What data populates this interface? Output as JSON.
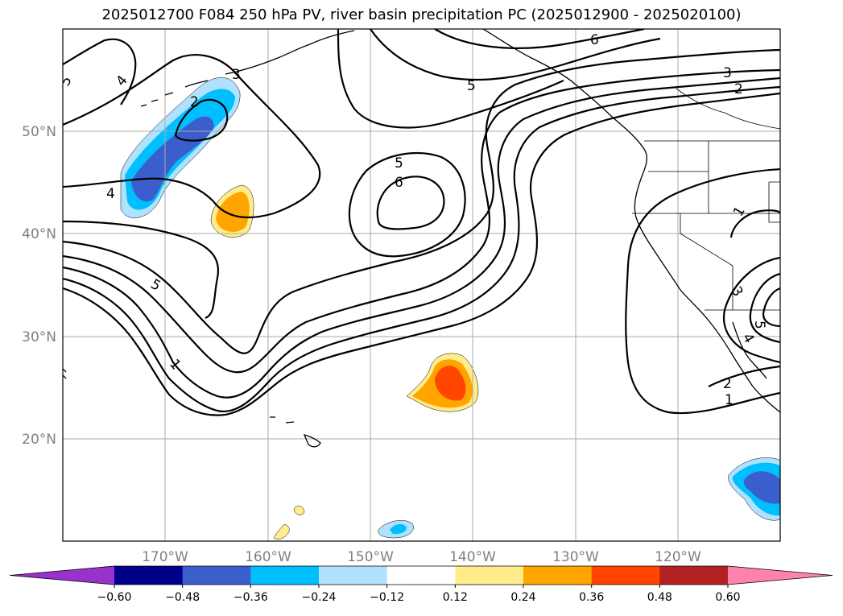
{
  "title": "2025012700 F084 250 hPa PV, river basin precipitation PC (2025012900 - 2025020100)",
  "lat_labels": [
    "50°N",
    "40°N",
    "30°N",
    "20°N"
  ],
  "lon_labels": [
    "170°W",
    "160°W",
    "150°W",
    "140°W",
    "130°W",
    "120°W"
  ],
  "contour_levels": [
    "1",
    "2",
    "3",
    "4",
    "5",
    "6"
  ],
  "contour_labels": [
    {
      "text": "5"
    },
    {
      "text": "4"
    },
    {
      "text": "2"
    },
    {
      "text": "3"
    },
    {
      "text": "4"
    },
    {
      "text": "5"
    },
    {
      "text": "1"
    },
    {
      "text": "5"
    },
    {
      "text": "6"
    },
    {
      "text": "5"
    },
    {
      "text": "6"
    },
    {
      "text": "3"
    },
    {
      "text": "2"
    },
    {
      "text": "1"
    },
    {
      "text": "3"
    },
    {
      "text": "5"
    },
    {
      "text": "4"
    },
    {
      "text": "2"
    },
    {
      "text": "1"
    }
  ],
  "colorbar": {
    "colors": [
      "#9932cc",
      "#00008b",
      "#3a5fcd",
      "#00bfff",
      "#b0e2ff",
      "#ffffff",
      "#ffec8b",
      "#ffa500",
      "#ff4500",
      "#b22222",
      "#ff82ab"
    ],
    "tick_labels": [
      "−0.60",
      "−0.48",
      "−0.36",
      "−0.24",
      "−0.12",
      "0.12",
      "0.24",
      "0.36",
      "0.48",
      "0.60"
    ]
  }
}
